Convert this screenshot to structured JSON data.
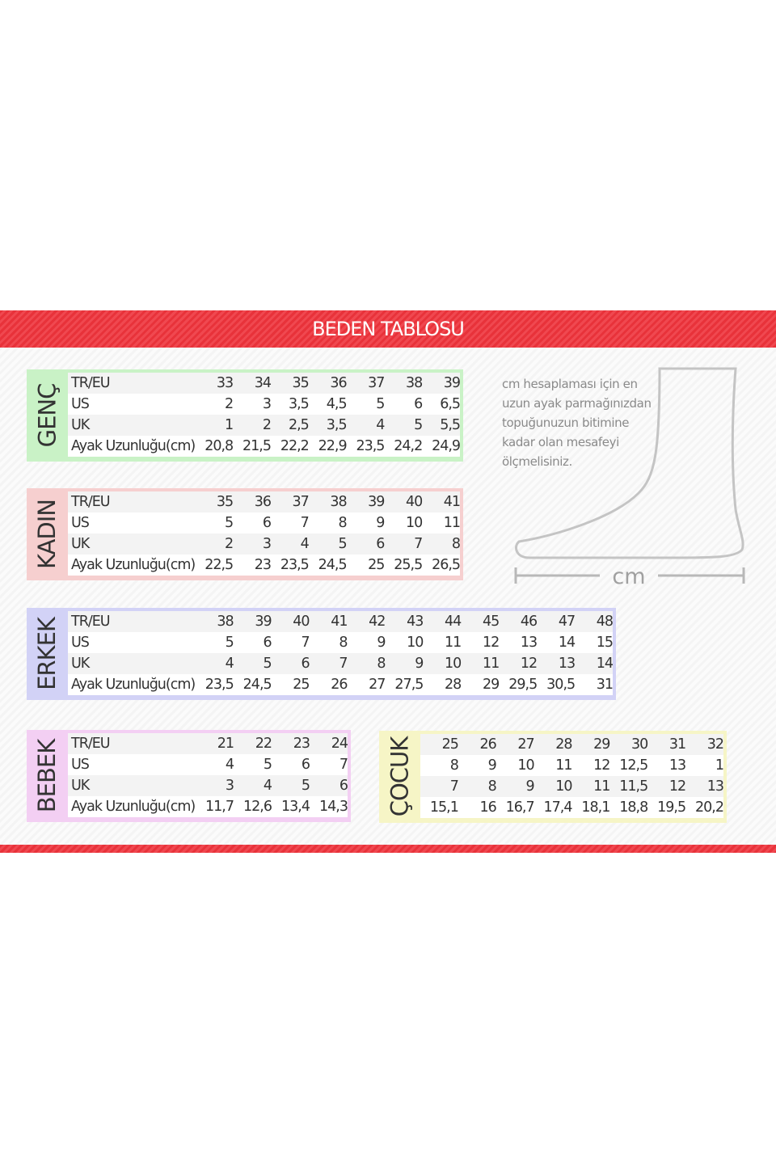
{
  "title": "BEDEN TABLOSU",
  "colors": {
    "header_red": "#e8323a",
    "genc": "#c9f2c6",
    "kadin": "#f6cfcf",
    "erkek": "#d2d2f6",
    "bebek": "#f3cff3",
    "cocuk": "#f6f5c6"
  },
  "row_labels": [
    "TR/EU",
    "US",
    "UK",
    "Ayak Uzunluğu(cm)"
  ],
  "tables": {
    "genc": {
      "label": "GENÇ",
      "rows": [
        [
          "33",
          "34",
          "35",
          "36",
          "37",
          "38",
          "39"
        ],
        [
          "2",
          "3",
          "3,5",
          "4,5",
          "5",
          "6",
          "6,5"
        ],
        [
          "1",
          "2",
          "2,5",
          "3,5",
          "4",
          "5",
          "5,5"
        ],
        [
          "20,8",
          "21,5",
          "22,2",
          "22,9",
          "23,5",
          "24,2",
          "24,9"
        ]
      ]
    },
    "kadin": {
      "label": "KADIN",
      "rows": [
        [
          "35",
          "36",
          "37",
          "38",
          "39",
          "40",
          "41"
        ],
        [
          "5",
          "6",
          "7",
          "8",
          "9",
          "10",
          "11"
        ],
        [
          "2",
          "3",
          "4",
          "5",
          "6",
          "7",
          "8"
        ],
        [
          "22,5",
          "23",
          "23,5",
          "24,5",
          "25",
          "25,5",
          "26,5"
        ]
      ]
    },
    "erkek": {
      "label": "ERKEK",
      "rows": [
        [
          "38",
          "39",
          "40",
          "41",
          "42",
          "43",
          "44",
          "45",
          "46",
          "47",
          "48"
        ],
        [
          "5",
          "6",
          "7",
          "8",
          "9",
          "10",
          "11",
          "12",
          "13",
          "14",
          "15"
        ],
        [
          "4",
          "5",
          "6",
          "7",
          "8",
          "9",
          "10",
          "11",
          "12",
          "13",
          "14"
        ],
        [
          "23,5",
          "24,5",
          "25",
          "26",
          "27",
          "27,5",
          "28",
          "29",
          "29,5",
          "30,5",
          "31"
        ]
      ]
    },
    "bebek": {
      "label": "BEBEK",
      "rows": [
        [
          "21",
          "22",
          "23",
          "24"
        ],
        [
          "4",
          "5",
          "6",
          "7"
        ],
        [
          "3",
          "4",
          "5",
          "6"
        ],
        [
          "11,7",
          "12,6",
          "13,4",
          "14,3"
        ]
      ]
    },
    "cocuk": {
      "label": "ÇOCUK",
      "rows": [
        [
          "25",
          "26",
          "27",
          "28",
          "29",
          "30",
          "31",
          "32"
        ],
        [
          "8",
          "9",
          "10",
          "11",
          "12",
          "12,5",
          "13",
          "1"
        ],
        [
          "7",
          "8",
          "9",
          "10",
          "11",
          "11,5",
          "12",
          "13"
        ],
        [
          "15,1",
          "16",
          "16,7",
          "17,4",
          "18,1",
          "18,8",
          "19,5",
          "20,2"
        ]
      ]
    }
  },
  "note": [
    "cm hesaplaması için en",
    "uzun ayak parmağınızdan",
    "topuğunuzun bitimine",
    "kadar olan mesafeyi",
    "ölçmelisiniz."
  ],
  "measure_unit": "cm"
}
